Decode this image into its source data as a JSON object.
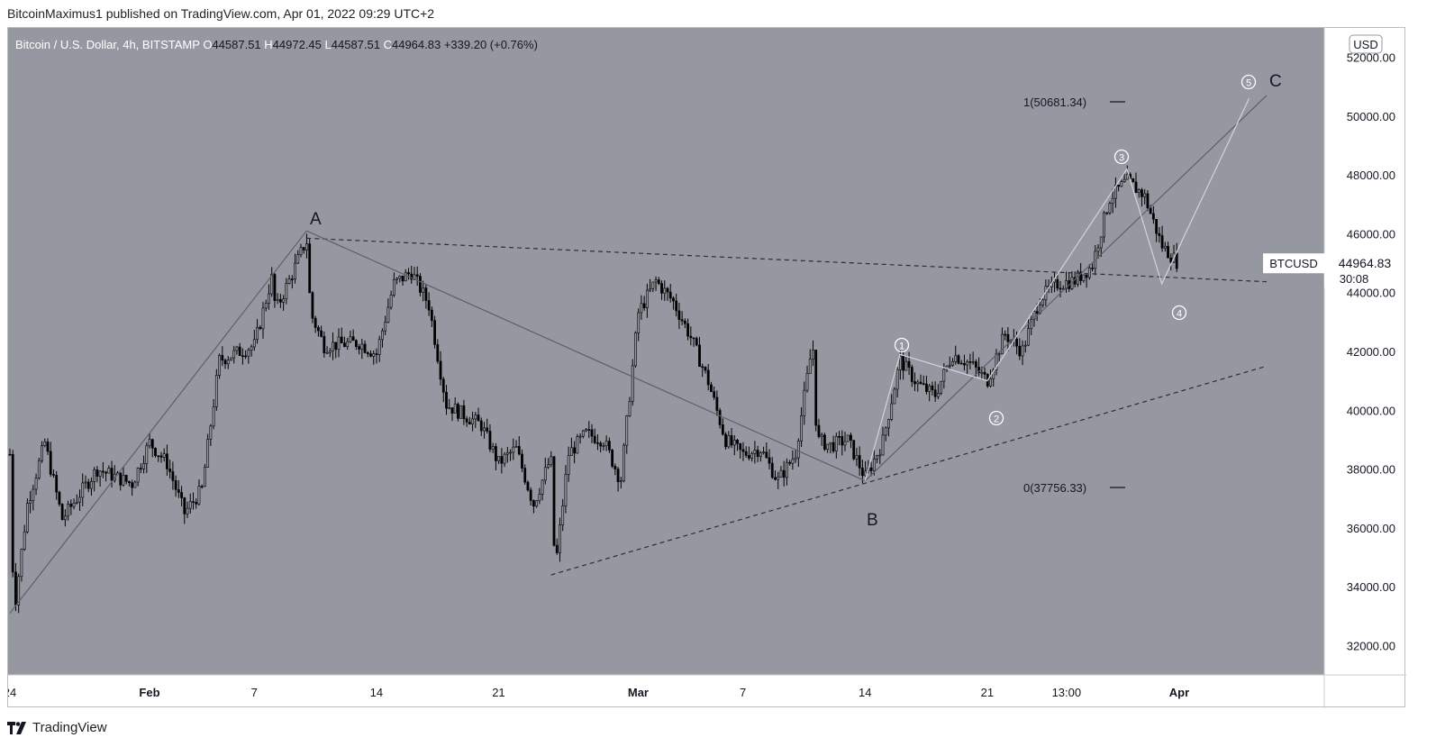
{
  "header": {
    "published_text": "BitcoinMaximus1 published on TradingView.com, Apr 01, 2022 09:29 UTC+2"
  },
  "legend": {
    "symbol": "Bitcoin / U.S. Dollar, 4h, BITSTAMP",
    "open_label": "O",
    "open": "44587.51",
    "high_label": "H",
    "high": "44972.45",
    "low_label": "L",
    "low": "44587.51",
    "close_label": "C",
    "close": "44964.83",
    "change": "+339.20 (+0.76%)"
  },
  "currency_button": "USD",
  "price_tag": {
    "symbol": "BTCUSD",
    "price": "44964.83",
    "countdown": "30:08"
  },
  "fib_levels": [
    {
      "label": "1(50681.34)",
      "value": 50681.34
    },
    {
      "label": "0(37756.33)",
      "value": 37756.33
    }
  ],
  "wave_labels": [
    "A",
    "B",
    "C"
  ],
  "sub_wave_labels": [
    "1",
    "2",
    "3",
    "4",
    "5"
  ],
  "footer": {
    "brand": "TradingView"
  },
  "colors": {
    "plot_bg": "#9598a1",
    "candle": "#000000",
    "wave_line": "#5d606b",
    "impulse_line": "#d1d4dc",
    "axis_text": "#131722"
  },
  "chart_data": {
    "type": "candlestick",
    "title": "Bitcoin / U.S. Dollar, 4h, BITSTAMP",
    "xlabel": "",
    "ylabel": "",
    "ylim": [
      31000,
      53000
    ],
    "y_ticks": [
      "52000.00",
      "50000.00",
      "48000.00",
      "46000.00",
      "44000.00",
      "42000.00",
      "40000.00",
      "38000.00",
      "36000.00",
      "34000.00",
      "32000.00"
    ],
    "x_ticks": [
      "24",
      "Feb",
      "7",
      "14",
      "21",
      "Mar",
      "7",
      "14",
      "21",
      "13:00",
      "Apr"
    ],
    "price_path": [
      {
        "date": "2022-01-24",
        "price": 38500
      },
      {
        "date": "2022-01-24",
        "price": 33100
      },
      {
        "date": "2022-01-25",
        "price": 36800
      },
      {
        "date": "2022-01-26",
        "price": 38900
      },
      {
        "date": "2022-01-27",
        "price": 36300
      },
      {
        "date": "2022-01-29",
        "price": 38000
      },
      {
        "date": "2022-01-31",
        "price": 37500
      },
      {
        "date": "2022-02-01",
        "price": 38900
      },
      {
        "date": "2022-02-02",
        "price": 38200
      },
      {
        "date": "2022-02-03",
        "price": 36500
      },
      {
        "date": "2022-02-04",
        "price": 37300
      },
      {
        "date": "2022-02-05",
        "price": 41700
      },
      {
        "date": "2022-02-07",
        "price": 42200
      },
      {
        "date": "2022-02-08",
        "price": 44500
      },
      {
        "date": "2022-02-08",
        "price": 43400
      },
      {
        "date": "2022-02-09",
        "price": 44400
      },
      {
        "date": "2022-02-10",
        "price": 45800
      },
      {
        "date": "2022-02-10",
        "price": 43300
      },
      {
        "date": "2022-02-11",
        "price": 42200
      },
      {
        "date": "2022-02-13",
        "price": 42300
      },
      {
        "date": "2022-02-14",
        "price": 41900
      },
      {
        "date": "2022-02-15",
        "price": 44300
      },
      {
        "date": "2022-02-16",
        "price": 44700
      },
      {
        "date": "2022-02-17",
        "price": 43600
      },
      {
        "date": "2022-02-18",
        "price": 40200
      },
      {
        "date": "2022-02-20",
        "price": 39500
      },
      {
        "date": "2022-02-21",
        "price": 38200
      },
      {
        "date": "2022-02-22",
        "price": 38700
      },
      {
        "date": "2022-02-23",
        "price": 36800
      },
      {
        "date": "2022-02-24",
        "price": 38400
      },
      {
        "date": "2022-02-24",
        "price": 34500
      },
      {
        "date": "2022-02-25",
        "price": 38500
      },
      {
        "date": "2022-02-26",
        "price": 39200
      },
      {
        "date": "2022-02-27",
        "price": 39000
      },
      {
        "date": "2022-02-28",
        "price": 37600
      },
      {
        "date": "2022-03-01",
        "price": 43300
      },
      {
        "date": "2022-03-02",
        "price": 44400
      },
      {
        "date": "2022-03-03",
        "price": 43700
      },
      {
        "date": "2022-03-04",
        "price": 42500
      },
      {
        "date": "2022-03-05",
        "price": 41000
      },
      {
        "date": "2022-03-06",
        "price": 39000
      },
      {
        "date": "2022-03-07",
        "price": 38500
      },
      {
        "date": "2022-03-08",
        "price": 38700
      },
      {
        "date": "2022-03-09",
        "price": 37600
      },
      {
        "date": "2022-03-10",
        "price": 38500
      },
      {
        "date": "2022-03-11",
        "price": 42300
      },
      {
        "date": "2022-03-11",
        "price": 39000
      },
      {
        "date": "2022-03-12",
        "price": 38800
      },
      {
        "date": "2022-03-13",
        "price": 39000
      },
      {
        "date": "2022-03-14",
        "price": 37700
      },
      {
        "date": "2022-03-15",
        "price": 38900
      },
      {
        "date": "2022-03-16",
        "price": 41700
      },
      {
        "date": "2022-03-17",
        "price": 40900
      },
      {
        "date": "2022-03-18",
        "price": 40500
      },
      {
        "date": "2022-03-19",
        "price": 41900
      },
      {
        "date": "2022-03-20",
        "price": 41600
      },
      {
        "date": "2022-03-21",
        "price": 41000
      },
      {
        "date": "2022-03-22",
        "price": 42600
      },
      {
        "date": "2022-03-23",
        "price": 42000
      },
      {
        "date": "2022-03-24",
        "price": 43800
      },
      {
        "date": "2022-03-25",
        "price": 44300
      },
      {
        "date": "2022-03-26",
        "price": 44400
      },
      {
        "date": "2022-03-27",
        "price": 44900
      },
      {
        "date": "2022-03-28",
        "price": 47200
      },
      {
        "date": "2022-03-29",
        "price": 47800
      },
      {
        "date": "2022-03-30",
        "price": 47300
      },
      {
        "date": "2022-03-31",
        "price": 45600
      },
      {
        "date": "2022-04-01",
        "price": 44965
      }
    ],
    "drawings": {
      "abc_wave": [
        {
          "date": "2022-01-24",
          "price": 33100
        },
        {
          "date": "2022-02-10",
          "price": 46100
        },
        {
          "date": "2022-03-14",
          "price": 37600
        },
        {
          "date": "2022-04-06",
          "price": 50700
        }
      ],
      "impulse_wave": [
        {
          "date": "2022-03-14",
          "price": 37600
        },
        {
          "date": "2022-03-16",
          "price": 41900
        },
        {
          "date": "2022-03-21",
          "price": 41000
        },
        {
          "date": "2022-03-29",
          "price": 48200
        },
        {
          "date": "2022-03-31",
          "price": 44300
        },
        {
          "date": "2022-04-05",
          "price": 50600
        }
      ],
      "resistance_line": [
        {
          "date": "2022-02-10",
          "price": 45850
        },
        {
          "date": "2022-04-06",
          "price": 44370
        }
      ],
      "support_line": [
        {
          "date": "2022-02-24",
          "price": 34400
        },
        {
          "date": "2022-04-06",
          "price": 41500
        }
      ]
    },
    "last_price": 44964.83,
    "grid": false,
    "legend": "top-left"
  }
}
